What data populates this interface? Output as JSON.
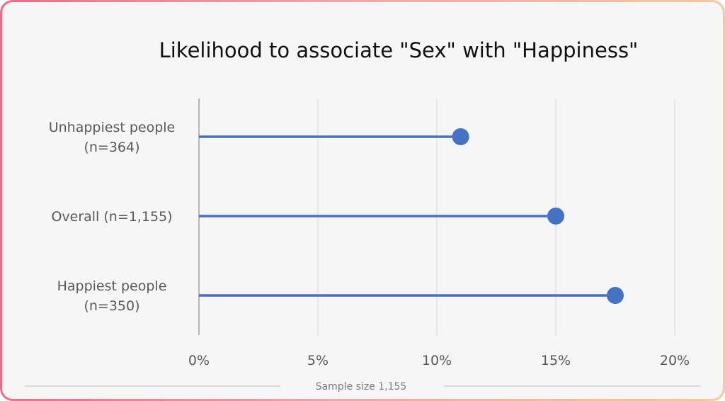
{
  "chart_data": {
    "type": "lollipop",
    "title": "Likelihood to associate \"Sex\" with \"Happiness\"",
    "categories": [
      [
        "Unhappiest people",
        "(n=364)"
      ],
      [
        "Overall (n=1,155)"
      ],
      [
        "Happiest people",
        "(n=350)"
      ]
    ],
    "values": [
      11,
      15,
      17.5
    ],
    "x_ticks": [
      "0%",
      "5%",
      "10%",
      "15%",
      "20%"
    ],
    "xlim": [
      0,
      20
    ],
    "x_unit": "%",
    "grid": "vertical",
    "footer": "Sample size 1,155"
  },
  "colors": {
    "series": "#4472c4",
    "grid": "#d9d9d9",
    "axis": "#8c8c8c",
    "footer_line": "#bfbfbf"
  }
}
